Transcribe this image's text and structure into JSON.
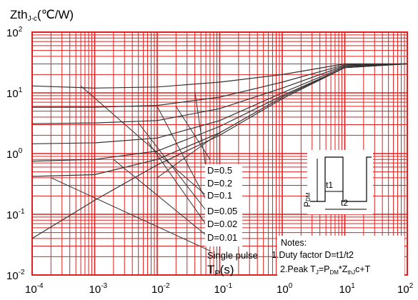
{
  "chart_data": {
    "type": "line",
    "ylabel": {
      "main": "Zth",
      "sub": "J-c",
      "unit": "(℃/W)"
    },
    "xlabel": {
      "main": "T",
      "sub": "P",
      "unit": "(s)"
    },
    "x_scale": "log",
    "y_scale": "log",
    "xlim": [
      0.0001,
      100
    ],
    "ylim": [
      0.01,
      100
    ],
    "x_ticks": [
      {
        "base": "10",
        "exp": "-4"
      },
      {
        "base": "10",
        "exp": "-3"
      },
      {
        "base": "10",
        "exp": "-2"
      },
      {
        "base": "10",
        "exp": "-1"
      },
      {
        "base": "10",
        "exp": "0"
      },
      {
        "base": "10",
        "exp": "1"
      },
      {
        "base": "10",
        "exp": "2"
      }
    ],
    "y_ticks": [
      {
        "base": "10",
        "exp": "2"
      },
      {
        "base": "10",
        "exp": "1"
      },
      {
        "base": "10",
        "exp": "0"
      },
      {
        "base": "10",
        "exp": "-1"
      },
      {
        "base": "10",
        "exp": "-2"
      }
    ],
    "grid": true,
    "grid_color": "#e0201e",
    "line_color": "#333333",
    "series": [
      {
        "name": "D=0.5",
        "x": [
          0.0001,
          0.001,
          0.01,
          0.1,
          1,
          10,
          100
        ],
        "y": [
          13,
          12,
          12.5,
          15,
          20,
          30,
          30
        ]
      },
      {
        "name": "D=0.2",
        "x": [
          0.0001,
          0.001,
          0.01,
          0.1,
          1,
          10,
          100
        ],
        "y": [
          5.8,
          5.8,
          6.2,
          8.5,
          15,
          29,
          30
        ]
      },
      {
        "name": "D=0.1",
        "x": [
          0.0001,
          0.001,
          0.01,
          0.1,
          1,
          10,
          100
        ],
        "y": [
          3.1,
          3.2,
          3.5,
          5.5,
          12,
          28,
          30
        ]
      },
      {
        "name": "D=0.05",
        "x": [
          0.0001,
          0.001,
          0.01,
          0.1,
          1,
          10,
          100
        ],
        "y": [
          1.45,
          1.5,
          1.8,
          3.5,
          10,
          27,
          30
        ]
      },
      {
        "name": "D=0.02",
        "x": [
          0.0001,
          0.001,
          0.01,
          0.1,
          1,
          10,
          100
        ],
        "y": [
          0.75,
          0.8,
          1.1,
          2.8,
          9,
          26,
          30
        ]
      },
      {
        "name": "D=0.01",
        "x": [
          0.0001,
          0.001,
          0.01,
          0.1,
          1,
          10,
          100
        ],
        "y": [
          0.42,
          0.45,
          0.8,
          2.2,
          8.5,
          26,
          30
        ]
      },
      {
        "name": "Single pulse",
        "x": [
          0.0001,
          0.001,
          0.01,
          0.1,
          1,
          10,
          100
        ],
        "y": [
          0.04,
          0.17,
          0.65,
          2,
          8,
          26,
          30
        ]
      }
    ],
    "diagonal_lines": [
      {
        "x": [
          0.0006,
          0.07
        ],
        "y": [
          13,
          0.18
        ]
      },
      {
        "x": [
          0.01,
          0.07
        ],
        "y": [
          6,
          0.13
        ]
      },
      {
        "x": [
          0.02,
          0.07
        ],
        "y": [
          6,
          0.8
        ]
      },
      {
        "x": [
          0.005,
          0.07
        ],
        "y": [
          3.2,
          0.095
        ]
      },
      {
        "x": [
          0.007,
          0.07
        ],
        "y": [
          1.6,
          0.055
        ]
      },
      {
        "x": [
          0.002,
          0.07
        ],
        "y": [
          0.8,
          0.04
        ]
      },
      {
        "x": [
          0.0002,
          0.07
        ],
        "y": [
          0.4,
          0.025
        ]
      },
      {
        "x": [
          0.04,
          0.07
        ],
        "y": [
          10.5,
          0.2
        ]
      },
      {
        "x": [
          0.01,
          0.1
        ],
        "y": [
          0.4,
          2.2
        ]
      }
    ],
    "curve_labels": [
      "D=0.5",
      "D=0.2",
      "D=0.1",
      "D=0.05",
      "D=0.02",
      "D=0.01",
      "Single pulse"
    ],
    "notes": {
      "title": "Notes:",
      "line1": "1.Duty factor D=t1/t2",
      "line2": {
        "prefix": "2.Peak T",
        "j": "J",
        "eq": "=P",
        "dm": "DM",
        "star": "*Z",
        "thjc": "thJ",
        "tail": "c+T"
      }
    },
    "inset": {
      "ylabel_main": "P",
      "ylabel_sub": "DM",
      "t1": "t1",
      "t2": "t2"
    }
  }
}
